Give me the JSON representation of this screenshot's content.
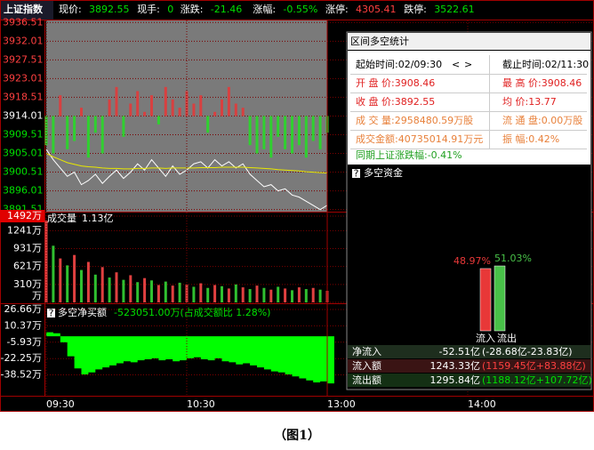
{
  "header": {
    "name": "上证指数",
    "items": [
      {
        "label": "现价:",
        "value": "3892.55"
      },
      {
        "label": "现手:",
        "value": "0"
      },
      {
        "label": "涨跌:",
        "value": "-21.46"
      },
      {
        "label": "涨幅:",
        "value": "-0.55%"
      },
      {
        "label": "涨停:",
        "value": "4305.41"
      },
      {
        "label": "跌停:",
        "value": "3522.61"
      }
    ]
  },
  "price_chart": {
    "type": "line",
    "prev_close": 3914.01,
    "ylim": [
      3891.0,
      3937.0
    ],
    "yticks": [
      3936.51,
      3932.01,
      3927.51,
      3923.01,
      3918.51,
      3914.01,
      3909.51,
      3905.01,
      3900.51,
      3896.01,
      3891.51
    ],
    "series": [
      {
        "name": "price",
        "color": "#ffffff",
        "values": [
          3906.0,
          3903.5,
          3901.5,
          3899.5,
          3900.5,
          3897.5,
          3898.5,
          3900.0,
          3897.8,
          3899.5,
          3901.0,
          3899.0,
          3900.5,
          3902.5,
          3901.0,
          3903.5,
          3901.5,
          3899.5,
          3902.0,
          3900.0,
          3901.0,
          3902.5,
          3903.0,
          3901.5,
          3903.5,
          3902.0,
          3903.0,
          3901.5,
          3902.5,
          3900.0,
          3898.5,
          3897.0,
          3897.5,
          3896.0,
          3896.5,
          3895.0,
          3894.5,
          3893.5,
          3892.5,
          3891.5,
          3892.55
        ]
      },
      {
        "name": "average",
        "color": "#e8e800",
        "values": [
          3905.0,
          3904.2,
          3903.5,
          3902.8,
          3902.4,
          3902.0,
          3901.8,
          3901.7,
          3901.5,
          3901.4,
          3901.4,
          3901.3,
          3901.3,
          3901.4,
          3901.4,
          3901.5,
          3901.5,
          3901.4,
          3901.5,
          3901.5,
          3901.5,
          3901.5,
          3901.6,
          3901.6,
          3901.6,
          3901.7,
          3901.7,
          3901.7,
          3901.7,
          3901.6,
          3901.5,
          3901.4,
          3901.3,
          3901.1,
          3901.0,
          3900.9,
          3900.8,
          3900.6,
          3900.5,
          3900.4,
          3900.3
        ]
      }
    ],
    "strength": [
      3907,
      3905,
      3919,
      3906,
      3908,
      3916,
      3904,
      3910,
      3905,
      3918,
      3921,
      3909,
      3917,
      3920,
      3915,
      3919,
      3912,
      3921,
      3918,
      3916,
      3920,
      3917,
      3919,
      3910,
      3915,
      3918,
      3921,
      3917,
      3916,
      3907,
      3905,
      3906,
      3904,
      3909,
      3906,
      3905,
      3907,
      3904,
      3908,
      3906,
      3910
    ]
  },
  "volume_chart": {
    "type": "bar",
    "title": "成交量",
    "total": "1.13亿",
    "ylim": [
      0,
      1600
    ],
    "yticks": [
      {
        "value": 1492,
        "label": "1492万"
      },
      {
        "value": 1241,
        "label": "1241万"
      },
      {
        "value": 931,
        "label": "931万"
      },
      {
        "value": 621,
        "label": "621万"
      },
      {
        "value": 310,
        "label": "310万"
      },
      {
        "value": 0,
        "label": "万"
      }
    ],
    "values": [
      1420,
      980,
      760,
      640,
      820,
      560,
      700,
      480,
      610,
      430,
      520,
      390,
      470,
      350,
      420,
      380,
      300,
      360,
      290,
      340,
      310,
      270,
      330,
      250,
      300,
      280,
      240,
      310,
      260,
      230,
      290,
      250,
      220,
      270,
      240,
      210,
      260,
      230,
      250,
      220,
      200
    ]
  },
  "flow_chart": {
    "type": "area",
    "title": "多空净买额",
    "summary": "-523051.00万(占成交额比 1.28%)",
    "help": "?",
    "ylim": [
      -58.4,
      30.2
    ],
    "yticks": [
      {
        "value": 26.66,
        "label": "26.66万"
      },
      {
        "value": 10.37,
        "label": "10.37万"
      },
      {
        "value": -5.93,
        "label": "-5.93万"
      },
      {
        "value": -22.25,
        "label": "-22.25万"
      },
      {
        "value": -38.52,
        "label": "-38.52万"
      }
    ],
    "values": [
      4,
      3,
      -6,
      -20,
      -32,
      -38,
      -36,
      -33,
      -31,
      -29,
      -27,
      -25,
      -26,
      -24,
      -23,
      -22,
      -24,
      -23,
      -25,
      -24,
      -22,
      -21,
      -23,
      -24,
      -22,
      -25,
      -26,
      -28,
      -27,
      -29,
      -31,
      -33,
      -35,
      -36,
      -38,
      -40,
      -42,
      -44,
      -46,
      -45,
      -47
    ]
  },
  "time_axis": [
    "09:30",
    "10:30",
    "13:00",
    "14:00"
  ],
  "panel": {
    "title": "区间多空统计",
    "nav": [
      "<",
      ">"
    ],
    "rows": [
      [
        "起始时间:02/09:30",
        "截止时间:02/11:30"
      ],
      [
        "开 盘 价:3908.46",
        "最 高 价:3908.46"
      ],
      [
        "收 盘 价:3892.55",
        "均    价:13.77"
      ],
      [
        "成 交 量:2958480.59万股",
        "流 通 盘:0.00万股"
      ],
      [
        "成交金额:40735014.91万元",
        "振    幅:0.42%"
      ]
    ],
    "change": "同期上证涨跌幅:-0.41%",
    "funds": {
      "title": "多空资金",
      "help": "?",
      "chart": {
        "type": "bar",
        "categories": [
          "流入",
          "流出"
        ],
        "values": [
          48.97,
          51.03
        ],
        "value_labels": [
          "48.97%",
          "51.03%"
        ],
        "colors": [
          "#e83838",
          "#48c048"
        ],
        "ylim": [
          0,
          100
        ]
      },
      "table": [
        [
          "净流入",
          "-52.51亿",
          "(-28.68亿-23.83亿)"
        ],
        [
          "流入额",
          "1243.33亿",
          "(1159.45亿+83.88亿)"
        ],
        [
          "流出额",
          "1295.84亿",
          "(1188.12亿+107.72亿)"
        ]
      ]
    }
  },
  "caption": "（图1）"
}
